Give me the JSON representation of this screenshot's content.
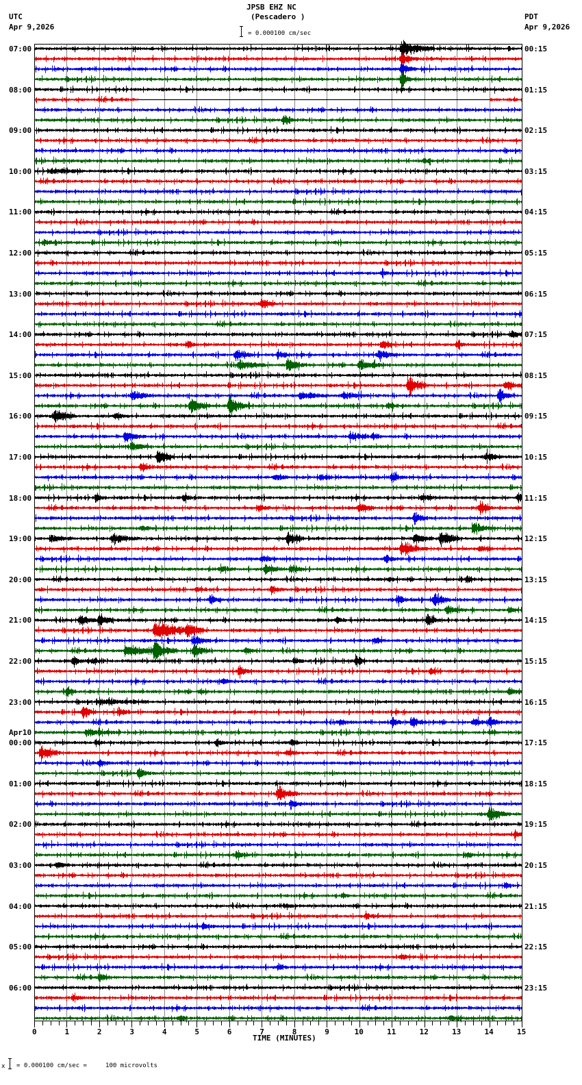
{
  "header": {
    "station": "JPSB EHZ NC",
    "location": "(Pescadero )",
    "left_tz": "UTC",
    "left_date": "Apr 9,2026",
    "right_tz": "PDT",
    "right_date": "Apr 9,2026",
    "scale_text": "= 0.000100 cm/sec"
  },
  "footer": {
    "scale_text": "= 0.000100 cm/sec =     100 microvolts",
    "scale_prefix": "x"
  },
  "colors": {
    "trace_cycle": [
      "#000000",
      "#e00000",
      "#0000e0",
      "#006000"
    ],
    "grid": "#888888",
    "frame": "#000000"
  },
  "chart_data": {
    "type": "seismogram",
    "title": "JPSB EHZ NC (Pescadero )",
    "xlabel": "TIME (MINUTES)",
    "x_ticks": [
      "0",
      "1",
      "2",
      "3",
      "4",
      "5",
      "6",
      "7",
      "8",
      "9",
      "10",
      "11",
      "12",
      "13",
      "14",
      "15"
    ],
    "xlim": [
      0,
      15
    ],
    "traces_per_hour": 4,
    "minutes_per_trace": 15,
    "num_traces": 96,
    "left_labels": [
      {
        "row": 0,
        "text": "07:00"
      },
      {
        "row": 4,
        "text": "08:00"
      },
      {
        "row": 8,
        "text": "09:00"
      },
      {
        "row": 12,
        "text": "10:00"
      },
      {
        "row": 16,
        "text": "11:00"
      },
      {
        "row": 20,
        "text": "12:00"
      },
      {
        "row": 24,
        "text": "13:00"
      },
      {
        "row": 28,
        "text": "14:00"
      },
      {
        "row": 32,
        "text": "15:00"
      },
      {
        "row": 36,
        "text": "16:00"
      },
      {
        "row": 40,
        "text": "17:00"
      },
      {
        "row": 44,
        "text": "18:00"
      },
      {
        "row": 48,
        "text": "19:00"
      },
      {
        "row": 52,
        "text": "20:00"
      },
      {
        "row": 56,
        "text": "21:00"
      },
      {
        "row": 60,
        "text": "22:00"
      },
      {
        "row": 64,
        "text": "23:00"
      },
      {
        "row": 68,
        "text": "00:00",
        "date": "Apr10"
      },
      {
        "row": 72,
        "text": "01:00"
      },
      {
        "row": 76,
        "text": "02:00"
      },
      {
        "row": 80,
        "text": "03:00"
      },
      {
        "row": 84,
        "text": "04:00"
      },
      {
        "row": 88,
        "text": "05:00"
      },
      {
        "row": 92,
        "text": "06:00"
      }
    ],
    "right_labels": [
      {
        "row": 0,
        "text": "00:15"
      },
      {
        "row": 4,
        "text": "01:15"
      },
      {
        "row": 8,
        "text": "02:15"
      },
      {
        "row": 12,
        "text": "03:15"
      },
      {
        "row": 16,
        "text": "04:15"
      },
      {
        "row": 20,
        "text": "05:15"
      },
      {
        "row": 24,
        "text": "06:15"
      },
      {
        "row": 28,
        "text": "07:15"
      },
      {
        "row": 32,
        "text": "08:15"
      },
      {
        "row": 36,
        "text": "09:15"
      },
      {
        "row": 40,
        "text": "10:15"
      },
      {
        "row": 44,
        "text": "11:15"
      },
      {
        "row": 48,
        "text": "12:15"
      },
      {
        "row": 52,
        "text": "13:15"
      },
      {
        "row": 56,
        "text": "14:15"
      },
      {
        "row": 60,
        "text": "15:15"
      },
      {
        "row": 64,
        "text": "16:15"
      },
      {
        "row": 68,
        "text": "17:15"
      },
      {
        "row": 72,
        "text": "18:15"
      },
      {
        "row": 76,
        "text": "19:15"
      },
      {
        "row": 80,
        "text": "20:15"
      },
      {
        "row": 84,
        "text": "21:15"
      },
      {
        "row": 88,
        "text": "22:15"
      },
      {
        "row": 92,
        "text": "23:15"
      }
    ],
    "gaps": [
      {
        "row": 5,
        "from_min": 3.2,
        "to_min": 14.0
      }
    ],
    "events": [
      {
        "row": 0,
        "min": 11.3,
        "amp": 12,
        "dur": 1.0
      },
      {
        "row": 1,
        "min": 11.3,
        "amp": 8,
        "dur": 0.5
      },
      {
        "row": 2,
        "min": 11.3,
        "amp": 10,
        "dur": 0.4
      },
      {
        "row": 3,
        "min": 11.3,
        "amp": 14,
        "dur": 0.3
      },
      {
        "row": 7,
        "min": 7.7,
        "amp": 9,
        "dur": 0.3
      },
      {
        "row": 11,
        "min": 12.0,
        "amp": 4,
        "dur": 0.3
      },
      {
        "row": 12,
        "min": 0.5,
        "amp": 4,
        "dur": 1.0
      },
      {
        "row": 19,
        "min": 0.3,
        "amp": 4,
        "dur": 0.4
      },
      {
        "row": 22,
        "min": 10.7,
        "amp": 4,
        "dur": 0.3
      },
      {
        "row": 25,
        "min": 7.0,
        "amp": 8,
        "dur": 0.4
      },
      {
        "row": 28,
        "min": 14.7,
        "amp": 5,
        "dur": 0.4
      },
      {
        "row": 29,
        "min": 4.7,
        "amp": 5,
        "dur": 0.3
      },
      {
        "row": 29,
        "min": 10.7,
        "amp": 6,
        "dur": 0.4
      },
      {
        "row": 29,
        "min": 13.0,
        "amp": 6,
        "dur": 0.3
      },
      {
        "row": 30,
        "min": 6.2,
        "amp": 8,
        "dur": 0.5
      },
      {
        "row": 30,
        "min": 7.5,
        "amp": 7,
        "dur": 0.4
      },
      {
        "row": 30,
        "min": 10.6,
        "amp": 7,
        "dur": 0.6
      },
      {
        "row": 31,
        "min": 6.3,
        "amp": 8,
        "dur": 0.8
      },
      {
        "row": 31,
        "min": 7.8,
        "amp": 9,
        "dur": 0.6
      },
      {
        "row": 31,
        "min": 10.0,
        "amp": 8,
        "dur": 0.8
      },
      {
        "row": 33,
        "min": 11.5,
        "amp": 14,
        "dur": 0.6
      },
      {
        "row": 33,
        "min": 14.5,
        "amp": 7,
        "dur": 0.5
      },
      {
        "row": 34,
        "min": 3.0,
        "amp": 8,
        "dur": 0.6
      },
      {
        "row": 34,
        "min": 8.2,
        "amp": 6,
        "dur": 0.8
      },
      {
        "row": 34,
        "min": 9.5,
        "amp": 5,
        "dur": 0.8
      },
      {
        "row": 34,
        "min": 14.3,
        "amp": 9,
        "dur": 0.4
      },
      {
        "row": 35,
        "min": 4.8,
        "amp": 12,
        "dur": 0.6
      },
      {
        "row": 35,
        "min": 6.0,
        "amp": 14,
        "dur": 0.6
      },
      {
        "row": 35,
        "min": 10.9,
        "amp": 6,
        "dur": 0.3
      },
      {
        "row": 36,
        "min": 0.6,
        "amp": 11,
        "dur": 0.7
      },
      {
        "row": 36,
        "min": 2.5,
        "amp": 4,
        "dur": 0.5
      },
      {
        "row": 38,
        "min": 2.8,
        "amp": 9,
        "dur": 0.6
      },
      {
        "row": 38,
        "min": 9.7,
        "amp": 5,
        "dur": 0.6
      },
      {
        "row": 38,
        "min": 10.4,
        "amp": 7,
        "dur": 0.3
      },
      {
        "row": 39,
        "min": 3.0,
        "amp": 7,
        "dur": 0.6
      },
      {
        "row": 40,
        "min": 3.8,
        "amp": 11,
        "dur": 0.5
      },
      {
        "row": 40,
        "min": 13.9,
        "amp": 7,
        "dur": 0.5
      },
      {
        "row": 41,
        "min": 3.3,
        "amp": 7,
        "dur": 0.4
      },
      {
        "row": 42,
        "min": 7.4,
        "amp": 5,
        "dur": 0.4
      },
      {
        "row": 42,
        "min": 8.8,
        "amp": 6,
        "dur": 0.4
      },
      {
        "row": 42,
        "min": 11.0,
        "amp": 8,
        "dur": 0.4
      },
      {
        "row": 44,
        "min": 1.9,
        "amp": 5,
        "dur": 0.3
      },
      {
        "row": 44,
        "min": 4.6,
        "amp": 5,
        "dur": 0.3
      },
      {
        "row": 44,
        "min": 11.9,
        "amp": 5,
        "dur": 0.4
      },
      {
        "row": 44,
        "min": 14.9,
        "amp": 8,
        "dur": 0.2
      },
      {
        "row": 45,
        "min": 6.9,
        "amp": 5,
        "dur": 0.4
      },
      {
        "row": 45,
        "min": 10.0,
        "amp": 8,
        "dur": 0.5
      },
      {
        "row": 45,
        "min": 13.7,
        "amp": 9,
        "dur": 0.4
      },
      {
        "row": 46,
        "min": 11.7,
        "amp": 9,
        "dur": 0.4
      },
      {
        "row": 47,
        "min": 3.3,
        "amp": 4,
        "dur": 0.4
      },
      {
        "row": 47,
        "min": 13.5,
        "amp": 9,
        "dur": 0.6
      },
      {
        "row": 48,
        "min": 0.5,
        "amp": 5,
        "dur": 0.8
      },
      {
        "row": 48,
        "min": 2.4,
        "amp": 7,
        "dur": 0.8
      },
      {
        "row": 48,
        "min": 7.8,
        "amp": 11,
        "dur": 0.5
      },
      {
        "row": 48,
        "min": 11.7,
        "amp": 9,
        "dur": 0.6
      },
      {
        "row": 48,
        "min": 12.5,
        "amp": 14,
        "dur": 0.6
      },
      {
        "row": 49,
        "min": 11.3,
        "amp": 9,
        "dur": 0.8
      },
      {
        "row": 49,
        "min": 13.7,
        "amp": 5,
        "dur": 0.4
      },
      {
        "row": 50,
        "min": 7.0,
        "amp": 5,
        "dur": 0.5
      },
      {
        "row": 50,
        "min": 10.8,
        "amp": 6,
        "dur": 0.4
      },
      {
        "row": 51,
        "min": 5.7,
        "amp": 5,
        "dur": 0.5
      },
      {
        "row": 51,
        "min": 7.1,
        "amp": 7,
        "dur": 0.6
      },
      {
        "row": 51,
        "min": 7.9,
        "amp": 6,
        "dur": 0.4
      },
      {
        "row": 52,
        "min": 10.9,
        "amp": 4,
        "dur": 0.3
      },
      {
        "row": 52,
        "min": 13.3,
        "amp": 5,
        "dur": 0.3
      },
      {
        "row": 53,
        "min": 5.0,
        "amp": 4,
        "dur": 0.3
      },
      {
        "row": 53,
        "min": 7.3,
        "amp": 5,
        "dur": 0.4
      },
      {
        "row": 54,
        "min": 5.4,
        "amp": 7,
        "dur": 0.4
      },
      {
        "row": 54,
        "min": 11.2,
        "amp": 8,
        "dur": 0.3
      },
      {
        "row": 54,
        "min": 12.3,
        "amp": 10,
        "dur": 0.5
      },
      {
        "row": 55,
        "min": 12.7,
        "amp": 7,
        "dur": 0.6
      },
      {
        "row": 55,
        "min": 14.6,
        "amp": 5,
        "dur": 0.3
      },
      {
        "row": 56,
        "min": 1.4,
        "amp": 8,
        "dur": 0.5
      },
      {
        "row": 56,
        "min": 2.0,
        "amp": 12,
        "dur": 0.4
      },
      {
        "row": 56,
        "min": 9.3,
        "amp": 4,
        "dur": 0.3
      },
      {
        "row": 56,
        "min": 12.1,
        "amp": 9,
        "dur": 0.4
      },
      {
        "row": 57,
        "min": 3.7,
        "amp": 14,
        "dur": 1.5
      },
      {
        "row": 57,
        "min": 4.7,
        "amp": 8,
        "dur": 0.6
      },
      {
        "row": 58,
        "min": 4.9,
        "amp": 7,
        "dur": 0.5
      },
      {
        "row": 58,
        "min": 10.5,
        "amp": 4,
        "dur": 0.3
      },
      {
        "row": 59,
        "min": 2.8,
        "amp": 10,
        "dur": 1.0
      },
      {
        "row": 59,
        "min": 3.7,
        "amp": 16,
        "dur": 0.7
      },
      {
        "row": 59,
        "min": 4.9,
        "amp": 12,
        "dur": 0.5
      },
      {
        "row": 59,
        "min": 6.5,
        "amp": 6,
        "dur": 0.3
      },
      {
        "row": 60,
        "min": 1.2,
        "amp": 8,
        "dur": 0.3
      },
      {
        "row": 60,
        "min": 1.8,
        "amp": 5,
        "dur": 0.3
      },
      {
        "row": 60,
        "min": 8.0,
        "amp": 5,
        "dur": 0.3
      },
      {
        "row": 60,
        "min": 9.9,
        "amp": 9,
        "dur": 0.3
      },
      {
        "row": 61,
        "min": 6.3,
        "amp": 8,
        "dur": 0.4
      },
      {
        "row": 61,
        "min": 12.2,
        "amp": 5,
        "dur": 0.3
      },
      {
        "row": 62,
        "min": 5.8,
        "amp": 5,
        "dur": 0.3
      },
      {
        "row": 63,
        "min": 1.0,
        "amp": 10,
        "dur": 0.3
      },
      {
        "row": 63,
        "min": 5.1,
        "amp": 4,
        "dur": 0.3
      },
      {
        "row": 63,
        "min": 14.6,
        "amp": 6,
        "dur": 0.4
      },
      {
        "row": 64,
        "min": 2.0,
        "amp": 4,
        "dur": 1.5
      },
      {
        "row": 65,
        "min": 1.5,
        "amp": 11,
        "dur": 0.4
      },
      {
        "row": 65,
        "min": 2.6,
        "amp": 6,
        "dur": 0.3
      },
      {
        "row": 66,
        "min": 9.4,
        "amp": 5,
        "dur": 0.3
      },
      {
        "row": 66,
        "min": 11.0,
        "amp": 7,
        "dur": 0.3
      },
      {
        "row": 66,
        "min": 11.6,
        "amp": 9,
        "dur": 0.5
      },
      {
        "row": 66,
        "min": 13.5,
        "amp": 6,
        "dur": 0.4
      },
      {
        "row": 66,
        "min": 14.0,
        "amp": 7,
        "dur": 0.4
      },
      {
        "row": 67,
        "min": 1.6,
        "amp": 5,
        "dur": 1.0
      },
      {
        "row": 67,
        "min": 14.0,
        "amp": 4,
        "dur": 0.3
      },
      {
        "row": 68,
        "min": 1.9,
        "amp": 5,
        "dur": 0.3
      },
      {
        "row": 68,
        "min": 5.6,
        "amp": 7,
        "dur": 0.3
      },
      {
        "row": 68,
        "min": 7.9,
        "amp": 5,
        "dur": 0.3
      },
      {
        "row": 69,
        "min": 0.2,
        "amp": 12,
        "dur": 0.6
      },
      {
        "row": 69,
        "min": 7.8,
        "amp": 5,
        "dur": 0.3
      },
      {
        "row": 70,
        "min": 2.0,
        "amp": 6,
        "dur": 0.3
      },
      {
        "row": 71,
        "min": 3.2,
        "amp": 8,
        "dur": 0.4
      },
      {
        "row": 73,
        "min": 7.5,
        "amp": 13,
        "dur": 0.6
      },
      {
        "row": 74,
        "min": 7.9,
        "amp": 7,
        "dur": 0.4
      },
      {
        "row": 75,
        "min": 14.0,
        "amp": 12,
        "dur": 0.6
      },
      {
        "row": 77,
        "min": 14.8,
        "amp": 5,
        "dur": 0.3
      },
      {
        "row": 79,
        "min": 6.2,
        "amp": 4,
        "dur": 0.4
      },
      {
        "row": 79,
        "min": 13.3,
        "amp": 4,
        "dur": 0.3
      },
      {
        "row": 80,
        "min": 0.7,
        "amp": 6,
        "dur": 0.4
      },
      {
        "row": 82,
        "min": 14.5,
        "amp": 4,
        "dur": 0.2
      },
      {
        "row": 83,
        "min": 9.5,
        "amp": 4,
        "dur": 0.2
      },
      {
        "row": 84,
        "min": 7.7,
        "amp": 4,
        "dur": 0.3
      },
      {
        "row": 85,
        "min": 10.2,
        "amp": 5,
        "dur": 0.3
      },
      {
        "row": 86,
        "min": 5.2,
        "amp": 5,
        "dur": 0.3
      },
      {
        "row": 89,
        "min": 11.3,
        "amp": 5,
        "dur": 0.3
      },
      {
        "row": 90,
        "min": 7.5,
        "amp": 5,
        "dur": 0.3
      },
      {
        "row": 91,
        "min": 2.0,
        "amp": 6,
        "dur": 0.4
      },
      {
        "row": 93,
        "min": 1.2,
        "amp": 6,
        "dur": 0.3
      },
      {
        "row": 95,
        "min": 4.5,
        "amp": 5,
        "dur": 0.2
      },
      {
        "row": 95,
        "min": 12.8,
        "amp": 4,
        "dur": 0.4
      }
    ]
  }
}
